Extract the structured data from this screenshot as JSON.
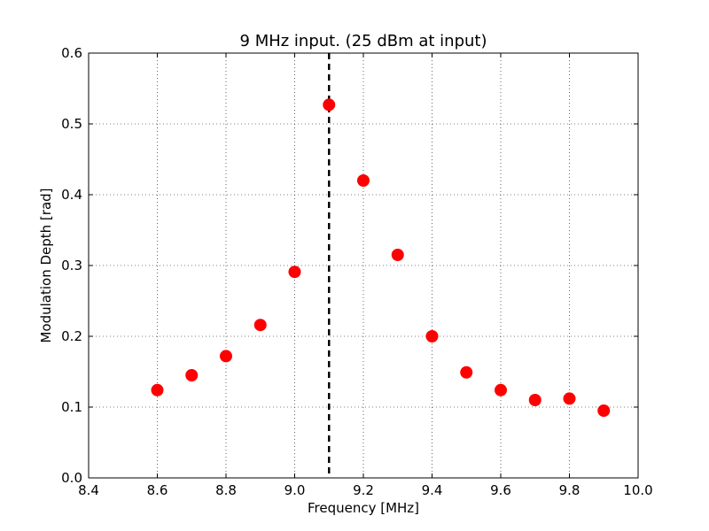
{
  "chart_data": {
    "type": "scatter",
    "title": "9 MHz input. (25 dBm at input)",
    "xlabel": "Frequency [MHz]",
    "ylabel": "Modulation Depth [rad]",
    "xlim": [
      8.4,
      10.0
    ],
    "ylim": [
      0.0,
      0.6
    ],
    "xticks": [
      "8.4",
      "8.6",
      "8.8",
      "9.0",
      "9.2",
      "9.4",
      "9.6",
      "9.8",
      "10.0"
    ],
    "yticks": [
      "0.0",
      "0.1",
      "0.2",
      "0.3",
      "0.4",
      "0.5",
      "0.6"
    ],
    "grid": true,
    "grid_style": "dotted",
    "series": [
      {
        "marker": "circle",
        "color": "#ff0000",
        "x": [
          8.6,
          8.7,
          8.8,
          8.9,
          9.0,
          9.1,
          9.2,
          9.3,
          9.4,
          9.5,
          9.6,
          9.7,
          9.8,
          9.9
        ],
        "y": [
          0.124,
          0.145,
          0.172,
          0.216,
          0.291,
          0.527,
          0.42,
          0.315,
          0.2,
          0.149,
          0.124,
          0.11,
          0.112,
          0.095
        ]
      }
    ],
    "reference_line": {
      "orientation": "vertical",
      "x": 9.1,
      "style": "dashed",
      "color": "#000000"
    }
  }
}
